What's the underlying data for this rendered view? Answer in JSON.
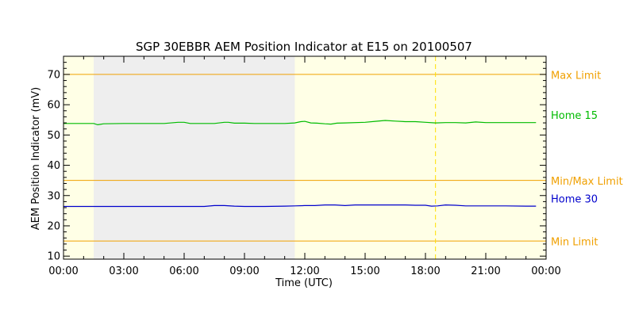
{
  "chart_data": {
    "type": "line",
    "title": "SGP 30EBBR AEM Position Indicator at E15 on 20100507",
    "xlabel": "Time (UTC)",
    "ylabel": "AEM Position Indicator (mV)",
    "xlim": [
      0,
      24
    ],
    "ylim": [
      9,
      76
    ],
    "x_tick_labels": [
      "00:00",
      "03:00",
      "06:00",
      "09:00",
      "12:00",
      "15:00",
      "18:00",
      "21:00",
      "00:00"
    ],
    "x_ticks": [
      0,
      3,
      6,
      9,
      12,
      15,
      18,
      21,
      24
    ],
    "y_ticks": [
      10,
      20,
      30,
      40,
      50,
      60,
      70
    ],
    "grid": false,
    "background_color": "#ffffe6",
    "shaded_regions": [
      {
        "x_start": 1.5,
        "x_end": 11.5,
        "color": "#eeeeee"
      }
    ],
    "reference_lines": [
      {
        "label": "Max Limit",
        "y": 70,
        "color": "#f0a000"
      },
      {
        "label": "Min/Max Limit",
        "y": 35,
        "color": "#f0a000"
      },
      {
        "label": "Min Limit",
        "y": 15,
        "color": "#f0a000"
      }
    ],
    "vertical_marker": {
      "x": 18.5,
      "color": "#ffe000",
      "style": "dashed"
    },
    "series": [
      {
        "name": "Home 15",
        "color": "#00bb00",
        "x": [
          0,
          1.5,
          1.7,
          2,
          3,
          4,
          5,
          5.7,
          6,
          6.3,
          7,
          7.5,
          8,
          8.2,
          8.5,
          9,
          9.5,
          10,
          10.5,
          11,
          11.5,
          11.8,
          12,
          12.3,
          12.6,
          13,
          13.3,
          13.6,
          14,
          15,
          15.5,
          16,
          16.5,
          17,
          17.5,
          18,
          18.5,
          19,
          19.5,
          20,
          20.5,
          21,
          22,
          23,
          23.5
        ],
        "y": [
          53.8,
          53.8,
          53.4,
          53.7,
          53.8,
          53.8,
          53.8,
          54.2,
          54.2,
          53.8,
          53.8,
          53.8,
          54.2,
          54.2,
          53.9,
          53.9,
          53.8,
          53.8,
          53.8,
          53.8,
          54.0,
          54.4,
          54.5,
          54.0,
          53.9,
          53.7,
          53.6,
          53.9,
          54.0,
          54.2,
          54.5,
          54.8,
          54.6,
          54.4,
          54.4,
          54.2,
          54.0,
          54.1,
          54.1,
          54.0,
          54.3,
          54.1,
          54.1,
          54.1,
          54.1
        ]
      },
      {
        "name": "Home 30",
        "color": "#0000cc",
        "x": [
          0,
          1,
          2,
          3,
          4,
          5,
          6,
          7,
          7.5,
          8,
          8.5,
          9,
          10,
          11,
          11.5,
          12,
          12.5,
          13,
          13.5,
          14,
          14.5,
          15,
          16,
          17,
          17.5,
          18,
          18.3,
          18.6,
          19,
          19.5,
          20,
          21,
          22,
          23,
          23.5
        ],
        "y": [
          26.4,
          26.4,
          26.4,
          26.4,
          26.4,
          26.4,
          26.4,
          26.4,
          26.7,
          26.7,
          26.5,
          26.4,
          26.4,
          26.5,
          26.6,
          26.7,
          26.7,
          26.9,
          26.9,
          26.7,
          26.9,
          26.9,
          26.9,
          26.9,
          26.8,
          26.8,
          26.5,
          26.6,
          26.9,
          26.8,
          26.6,
          26.6,
          26.6,
          26.5,
          26.5
        ]
      }
    ]
  }
}
